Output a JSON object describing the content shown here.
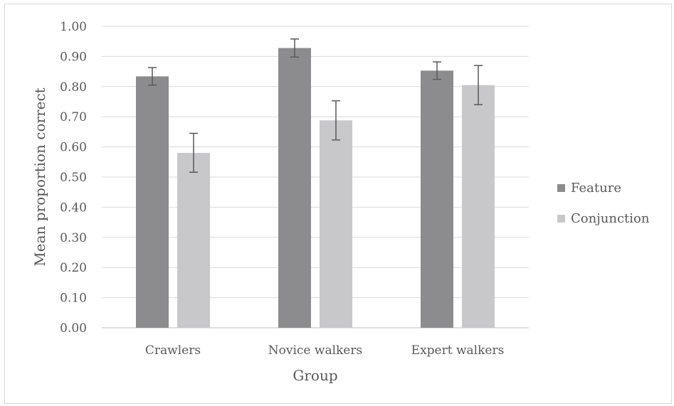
{
  "chart_data": {
    "type": "bar",
    "title": "",
    "xlabel": "Group",
    "ylabel": "Mean proportion correct",
    "ylim": [
      0,
      1.0
    ],
    "yticks": [
      "0.00",
      "0.10",
      "0.20",
      "0.30",
      "0.40",
      "0.50",
      "0.60",
      "0.70",
      "0.80",
      "0.90",
      "1.00"
    ],
    "grid": true,
    "legend_position": "right",
    "categories": [
      "Crawlers",
      "Novice walkers",
      "Expert walkers"
    ],
    "series": [
      {
        "name": "Feature",
        "color": "#8c8c8e",
        "values": [
          0.834,
          0.928,
          0.853
        ],
        "error_low": [
          0.805,
          0.898,
          0.824
        ],
        "error_high": [
          0.863,
          0.958,
          0.882
        ]
      },
      {
        "name": "Conjunction",
        "color": "#c8c8ca",
        "values": [
          0.58,
          0.688,
          0.805
        ],
        "error_low": [
          0.516,
          0.623,
          0.74
        ],
        "error_high": [
          0.645,
          0.753,
          0.87
        ]
      }
    ]
  }
}
